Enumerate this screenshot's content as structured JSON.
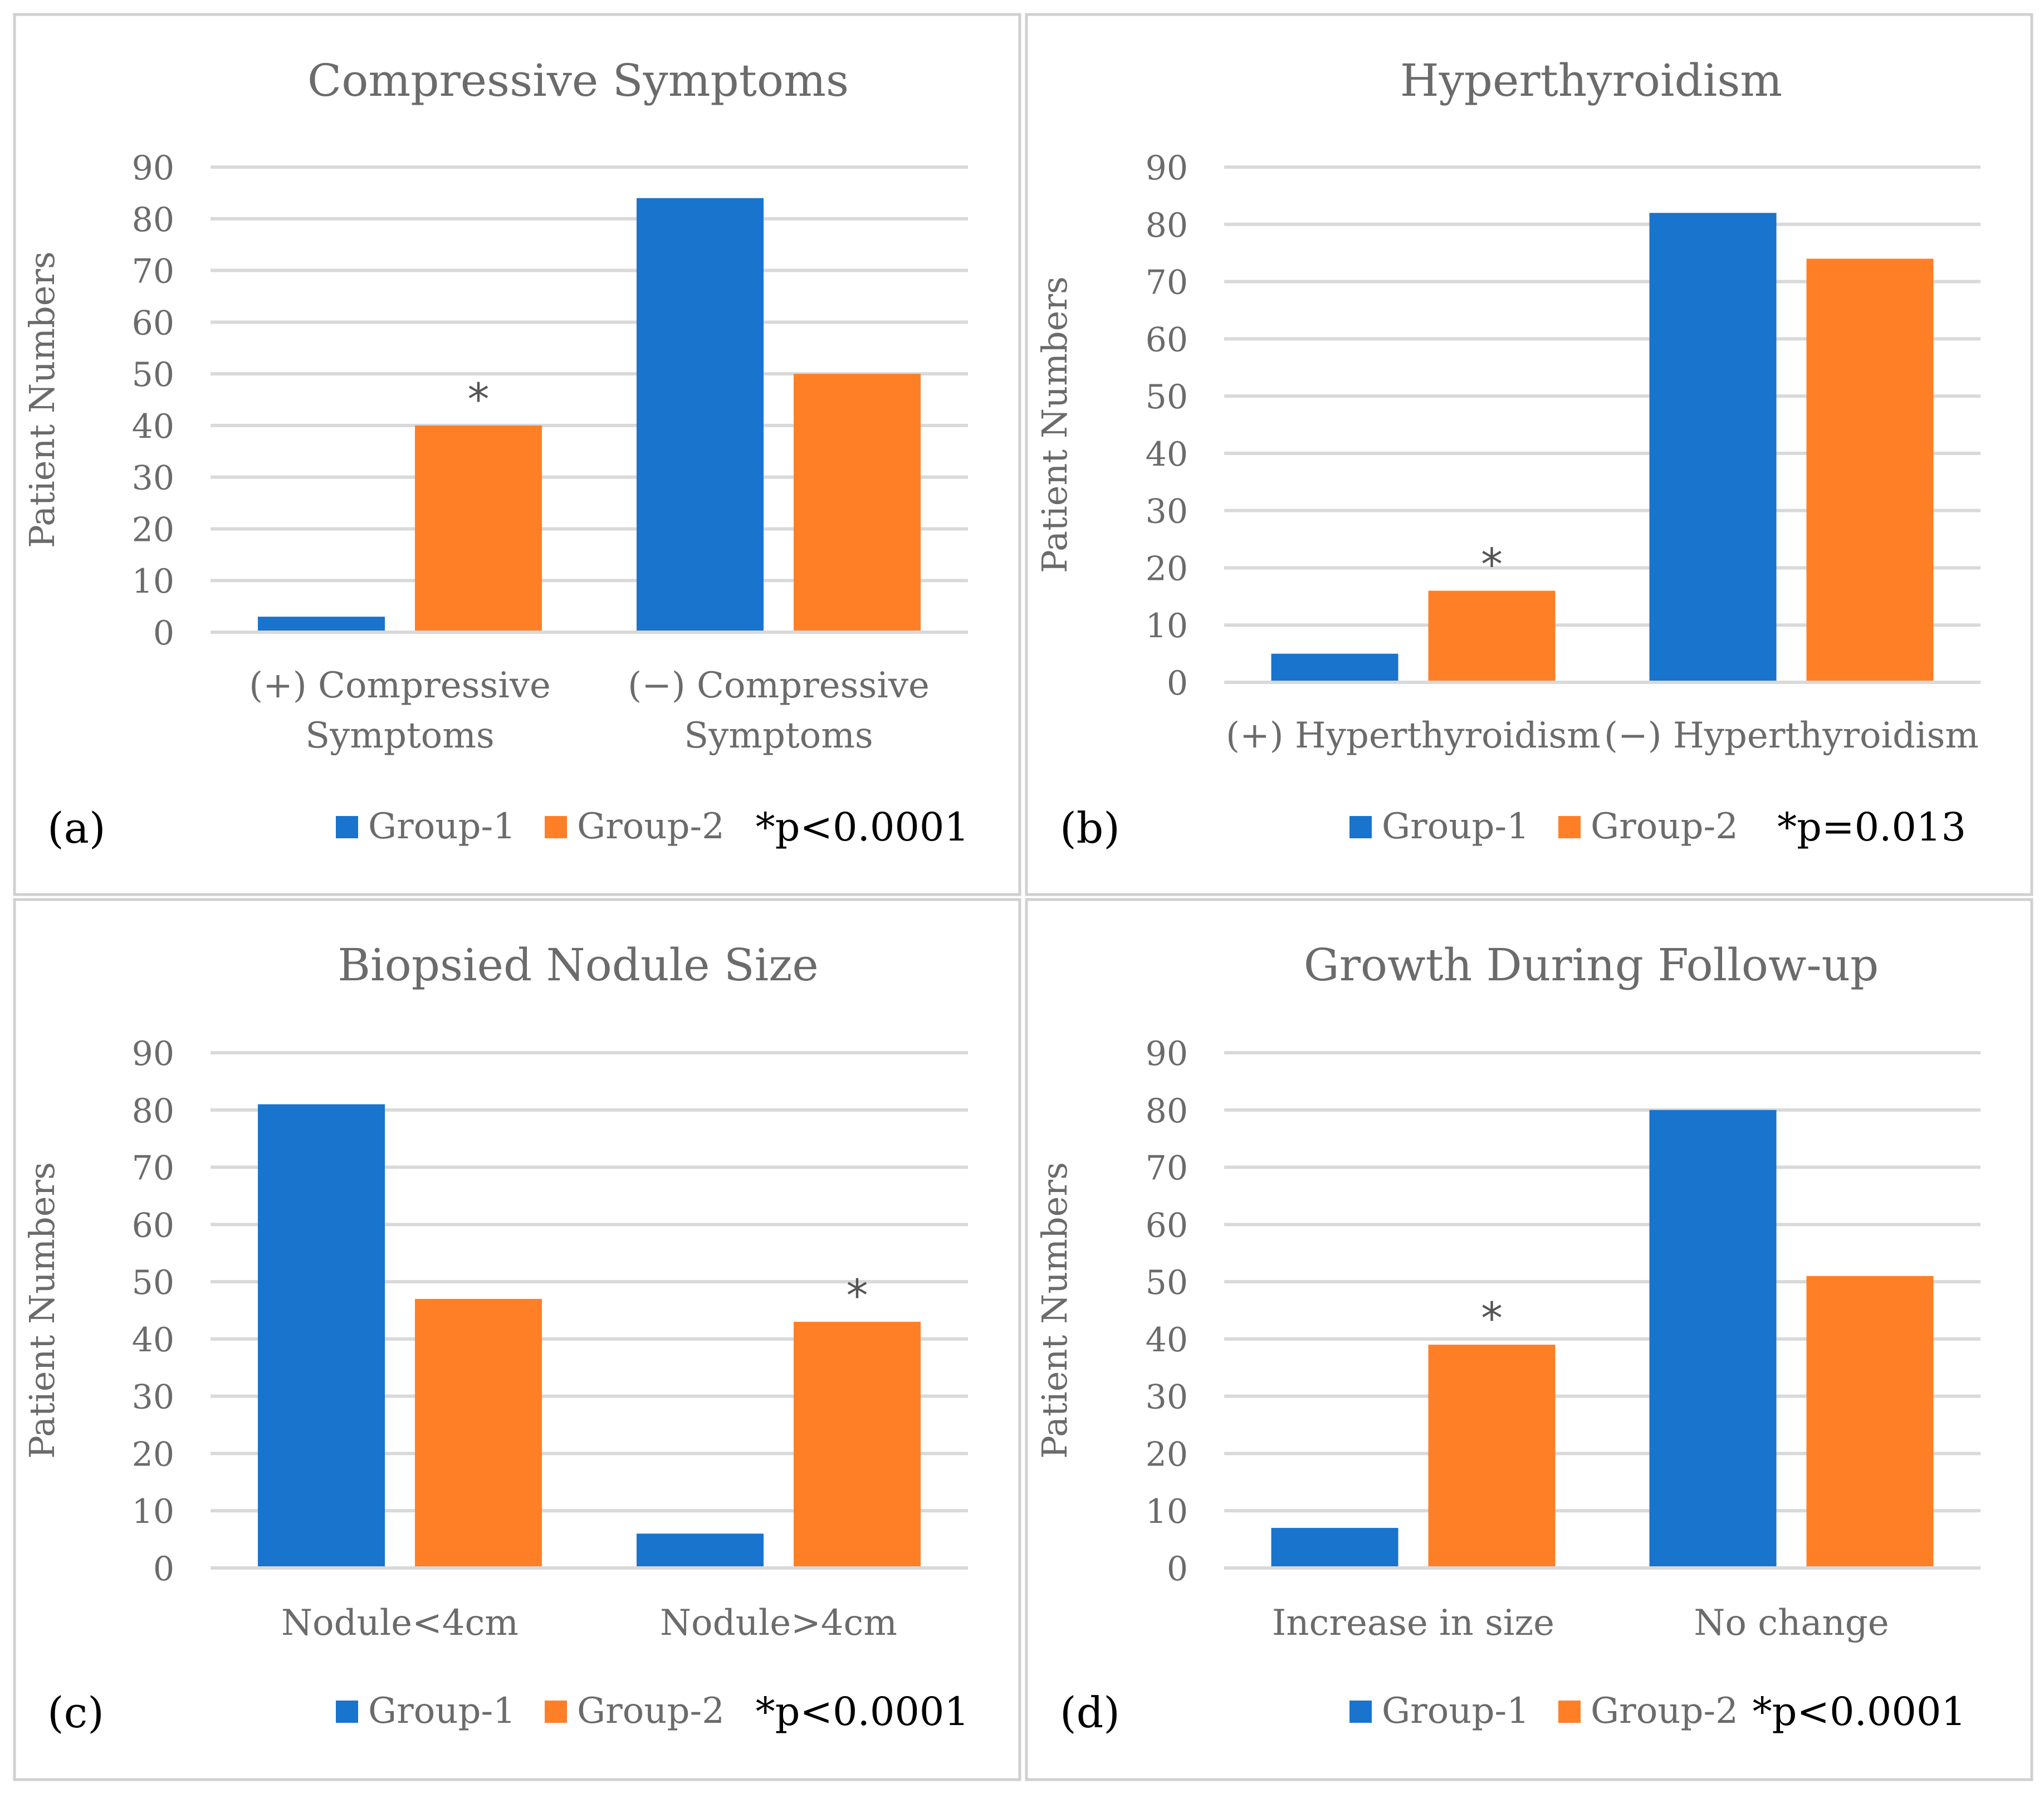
{
  "colors": {
    "group1": "#1874CD",
    "group2": "#FF7F27",
    "grid": "#d9d9d9",
    "border": "#d0d0d0"
  },
  "chart_data": [
    {
      "type": "bar",
      "panel_label": "(a)",
      "title": "Compressive Symptoms",
      "ylabel": "Patient Numbers",
      "xlabel": "",
      "ylim": [
        0,
        90
      ],
      "yticks": [
        0,
        10,
        20,
        30,
        40,
        50,
        60,
        70,
        80,
        90
      ],
      "categories": [
        [
          "(+) Compressive",
          "Symptoms"
        ],
        [
          "(−) Compressive",
          "Symptoms"
        ]
      ],
      "series": [
        {
          "name": "Group-1",
          "values": [
            3,
            84
          ]
        },
        {
          "name": "Group-2",
          "values": [
            40,
            50
          ]
        }
      ],
      "annotations": [
        {
          "text": "*",
          "series": 1,
          "category": 0
        }
      ],
      "legend": "bottom",
      "pvalue": "*p<0.0001"
    },
    {
      "type": "bar",
      "panel_label": "(b)",
      "title": "Hyperthyroidism",
      "ylabel": "Patient Numbers",
      "xlabel": "",
      "ylim": [
        0,
        90
      ],
      "yticks": [
        0,
        10,
        20,
        30,
        40,
        50,
        60,
        70,
        80,
        90
      ],
      "categories": [
        [
          "(+) Hyperthyroidism"
        ],
        [
          "(−) Hyperthyroidism"
        ]
      ],
      "series": [
        {
          "name": "Group-1",
          "values": [
            5,
            82
          ]
        },
        {
          "name": "Group-2",
          "values": [
            16,
            74
          ]
        }
      ],
      "annotations": [
        {
          "text": "*",
          "series": 1,
          "category": 0
        }
      ],
      "legend": "bottom",
      "pvalue": "*p=0.013"
    },
    {
      "type": "bar",
      "panel_label": "(c)",
      "title": "Biopsied Nodule Size",
      "ylabel": "Patient Numbers",
      "xlabel": "",
      "ylim": [
        0,
        90
      ],
      "yticks": [
        0,
        10,
        20,
        30,
        40,
        50,
        60,
        70,
        80,
        90
      ],
      "categories": [
        [
          "Nodule<4cm"
        ],
        [
          "Nodule>4cm"
        ]
      ],
      "series": [
        {
          "name": "Group-1",
          "values": [
            81,
            6
          ]
        },
        {
          "name": "Group-2",
          "values": [
            47,
            43
          ]
        }
      ],
      "annotations": [
        {
          "text": "*",
          "series": 1,
          "category": 1
        }
      ],
      "legend": "bottom",
      "pvalue": "*p<0.0001"
    },
    {
      "type": "bar",
      "panel_label": "(d)",
      "title": "Growth During Follow-up",
      "ylabel": "Patient Numbers",
      "xlabel": "",
      "ylim": [
        0,
        90
      ],
      "yticks": [
        0,
        10,
        20,
        30,
        40,
        50,
        60,
        70,
        80,
        90
      ],
      "categories": [
        [
          "Increase in size"
        ],
        [
          "No change"
        ]
      ],
      "series": [
        {
          "name": "Group-1",
          "values": [
            7,
            80
          ]
        },
        {
          "name": "Group-2",
          "values": [
            39,
            51
          ]
        }
      ],
      "annotations": [
        {
          "text": "*",
          "series": 1,
          "category": 0
        }
      ],
      "legend": "bottom",
      "pvalue": "*p<0.0001"
    }
  ]
}
